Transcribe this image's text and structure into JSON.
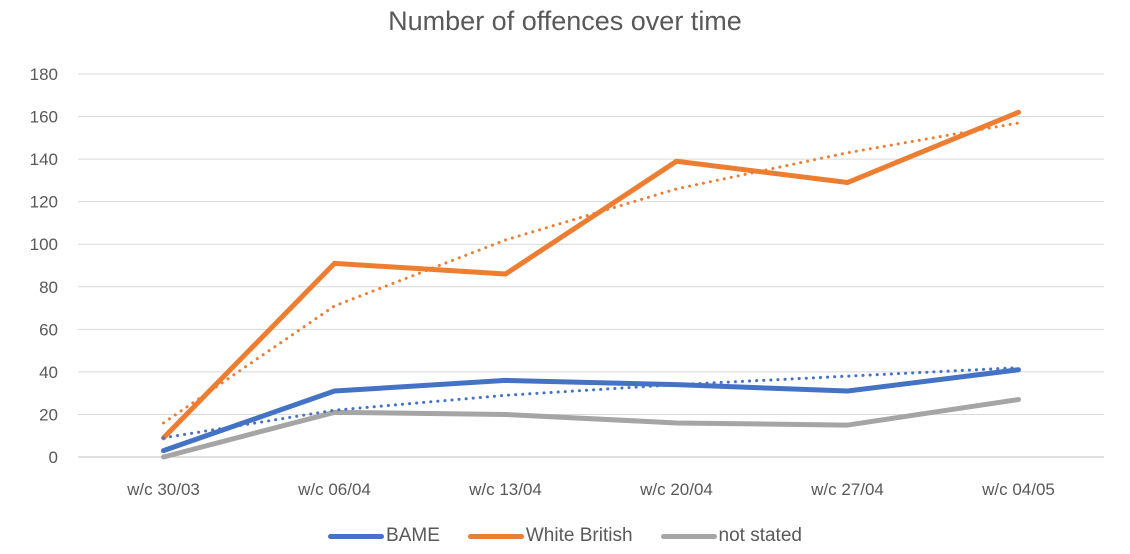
{
  "chart_data": {
    "type": "line",
    "title": "Number of offences over time",
    "categories": [
      "w/c 30/03",
      "w/c 06/04",
      "w/c 13/04",
      "w/c 20/04",
      "w/c 27/04",
      "w/c 04/05"
    ],
    "ylim": [
      0,
      180
    ],
    "yticks": [
      0,
      20,
      40,
      60,
      80,
      100,
      120,
      140,
      160,
      180
    ],
    "grid": true,
    "legend_position": "bottom",
    "series": [
      {
        "name": "BAME",
        "color": "#4472C4",
        "values": [
          3,
          31,
          36,
          34,
          31,
          41
        ]
      },
      {
        "name": "White British",
        "color": "#ED7D31",
        "values": [
          9,
          91,
          86,
          139,
          129,
          162
        ]
      },
      {
        "name": "not stated",
        "color": "#A5A5A5",
        "values": [
          0,
          21,
          20,
          16,
          15,
          27
        ]
      }
    ],
    "trendlines": [
      {
        "series": "BAME",
        "style": "dotted",
        "values": [
          9,
          22,
          29,
          34,
          38,
          42
        ]
      },
      {
        "series": "White British",
        "style": "dotted",
        "values": [
          16,
          71,
          102,
          126,
          143,
          157
        ]
      }
    ]
  }
}
